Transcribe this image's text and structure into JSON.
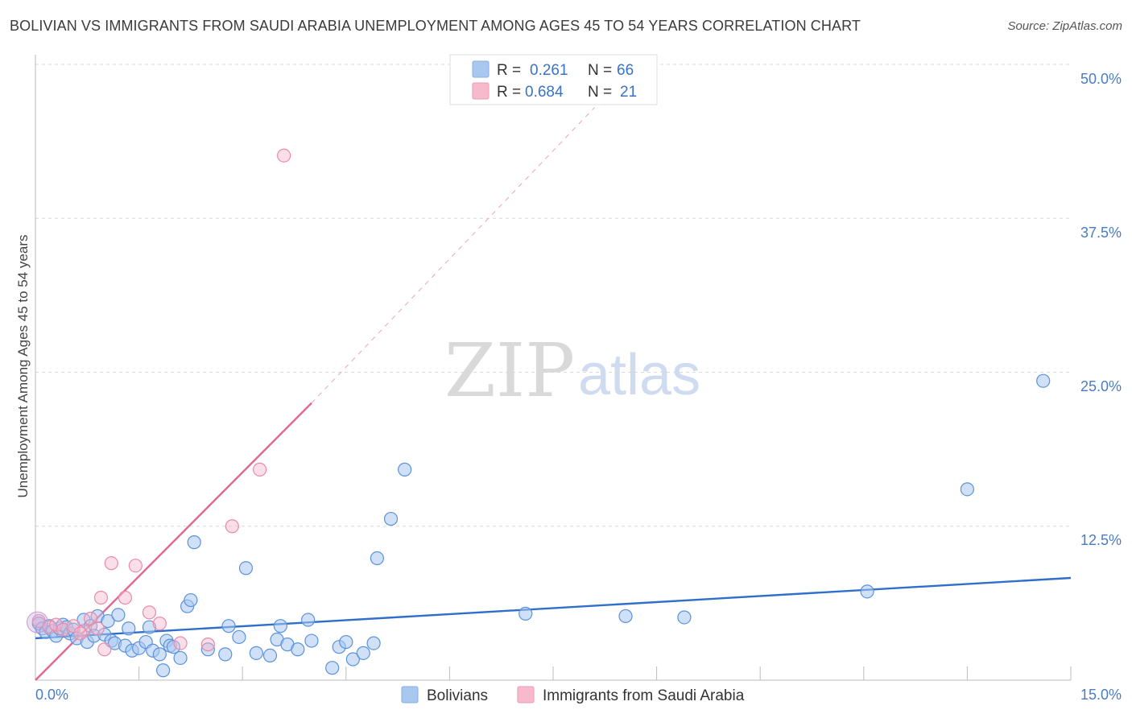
{
  "title": "BOLIVIAN VS IMMIGRANTS FROM SAUDI ARABIA UNEMPLOYMENT AMONG AGES 45 TO 54 YEARS CORRELATION CHART",
  "source": "Source: ZipAtlas.com",
  "watermark": {
    "zip": "ZIP",
    "atlas": "atlas"
  },
  "legend": {
    "rows": [
      {
        "r_label": "R =",
        "r_value": "0.261",
        "n_label": "N =",
        "n_value": "66",
        "color": "#a9c8f0"
      },
      {
        "r_label": "R =",
        "r_value": "0.684",
        "n_label": "N =",
        "n_value": "21",
        "color": "#f7b9cc"
      }
    ]
  },
  "bottom_legend": [
    {
      "label": "Bolivians",
      "color": "#a9c8f0"
    },
    {
      "label": "Immigrants from Saudi Arabia",
      "color": "#f7b9cc"
    }
  ],
  "chart_data": {
    "type": "scatter",
    "ylabel": "Unemployment Among Ages 45 to 54 years",
    "x_tick_labels": [
      "0.0%",
      "15.0%"
    ],
    "y_tick_labels": [
      "12.5%",
      "25.0%",
      "37.5%",
      "50.0%"
    ],
    "xlim": [
      0,
      15
    ],
    "ylim": [
      0,
      50
    ],
    "grid": "horizontal dashed",
    "legend_position": "top-center",
    "colors": {
      "bolivians": "#4a86d8",
      "saudi": "#e97aa0",
      "blue_line": "#2f6fcb",
      "pink_line": "#e26592"
    },
    "series": [
      {
        "name": "Bolivians",
        "points": [
          [
            0.05,
            4.6
          ],
          [
            0.1,
            4.2
          ],
          [
            0.15,
            3.9
          ],
          [
            0.2,
            4.4
          ],
          [
            0.25,
            4.0
          ],
          [
            0.3,
            3.6
          ],
          [
            0.35,
            4.2
          ],
          [
            0.4,
            4.5
          ],
          [
            0.45,
            4.3
          ],
          [
            0.5,
            3.8
          ],
          [
            0.55,
            4.1
          ],
          [
            0.6,
            3.4
          ],
          [
            0.7,
            4.9
          ],
          [
            0.75,
            3.1
          ],
          [
            0.8,
            4.4
          ],
          [
            0.85,
            3.6
          ],
          [
            0.9,
            5.2
          ],
          [
            1.0,
            3.7
          ],
          [
            1.05,
            4.8
          ],
          [
            1.1,
            3.2
          ],
          [
            1.15,
            3.0
          ],
          [
            1.2,
            5.3
          ],
          [
            1.3,
            2.8
          ],
          [
            1.35,
            4.2
          ],
          [
            1.4,
            2.4
          ],
          [
            1.5,
            2.6
          ],
          [
            1.6,
            3.1
          ],
          [
            1.65,
            4.3
          ],
          [
            1.7,
            2.4
          ],
          [
            1.8,
            2.1
          ],
          [
            1.85,
            0.8
          ],
          [
            1.9,
            3.2
          ],
          [
            1.95,
            2.8
          ],
          [
            2.0,
            2.7
          ],
          [
            2.1,
            1.8
          ],
          [
            2.2,
            6.0
          ],
          [
            2.25,
            6.5
          ],
          [
            2.3,
            11.2
          ],
          [
            2.5,
            2.5
          ],
          [
            2.75,
            2.1
          ],
          [
            2.8,
            4.4
          ],
          [
            2.95,
            3.5
          ],
          [
            3.05,
            9.1
          ],
          [
            3.2,
            2.2
          ],
          [
            3.4,
            2.0
          ],
          [
            3.5,
            3.3
          ],
          [
            3.55,
            4.4
          ],
          [
            3.65,
            2.9
          ],
          [
            3.8,
            2.5
          ],
          [
            3.95,
            4.9
          ],
          [
            4.0,
            3.2
          ],
          [
            4.3,
            1.0
          ],
          [
            4.4,
            2.7
          ],
          [
            4.5,
            3.1
          ],
          [
            4.6,
            1.7
          ],
          [
            4.75,
            2.2
          ],
          [
            4.9,
            3.0
          ],
          [
            4.95,
            9.9
          ],
          [
            5.15,
            13.1
          ],
          [
            5.35,
            17.1
          ],
          [
            7.1,
            5.4
          ],
          [
            8.55,
            5.2
          ],
          [
            9.4,
            5.1
          ],
          [
            12.05,
            7.2
          ],
          [
            13.5,
            15.5
          ],
          [
            14.6,
            24.3
          ]
        ]
      },
      {
        "name": "Immigrants from Saudi Arabia",
        "points": [
          [
            0.05,
            4.8
          ],
          [
            0.2,
            4.3
          ],
          [
            0.3,
            4.5
          ],
          [
            0.4,
            4.1
          ],
          [
            0.55,
            4.4
          ],
          [
            0.7,
            4.0
          ],
          [
            0.8,
            5.0
          ],
          [
            0.9,
            4.2
          ],
          [
            0.95,
            6.7
          ],
          [
            1.0,
            2.5
          ],
          [
            1.1,
            9.5
          ],
          [
            1.3,
            6.7
          ],
          [
            1.45,
            9.3
          ],
          [
            1.65,
            5.5
          ],
          [
            1.8,
            4.6
          ],
          [
            2.1,
            3.0
          ],
          [
            2.5,
            2.9
          ],
          [
            2.85,
            12.5
          ],
          [
            3.25,
            17.1
          ],
          [
            3.6,
            42.6
          ],
          [
            0.65,
            3.8
          ]
        ]
      }
    ],
    "trendlines": [
      {
        "series": "Bolivians",
        "from": [
          0,
          3.4
        ],
        "to": [
          15,
          8.3
        ],
        "style": "solid"
      },
      {
        "series": "Immigrants from Saudi Arabia",
        "from": [
          0,
          0
        ],
        "to": [
          4.0,
          22.5
        ],
        "style": "solid"
      },
      {
        "series": "Immigrants from Saudi Arabia",
        "from": [
          4.0,
          22.5
        ],
        "to": [
          8.1,
          46.5
        ],
        "style": "dashed"
      }
    ]
  }
}
